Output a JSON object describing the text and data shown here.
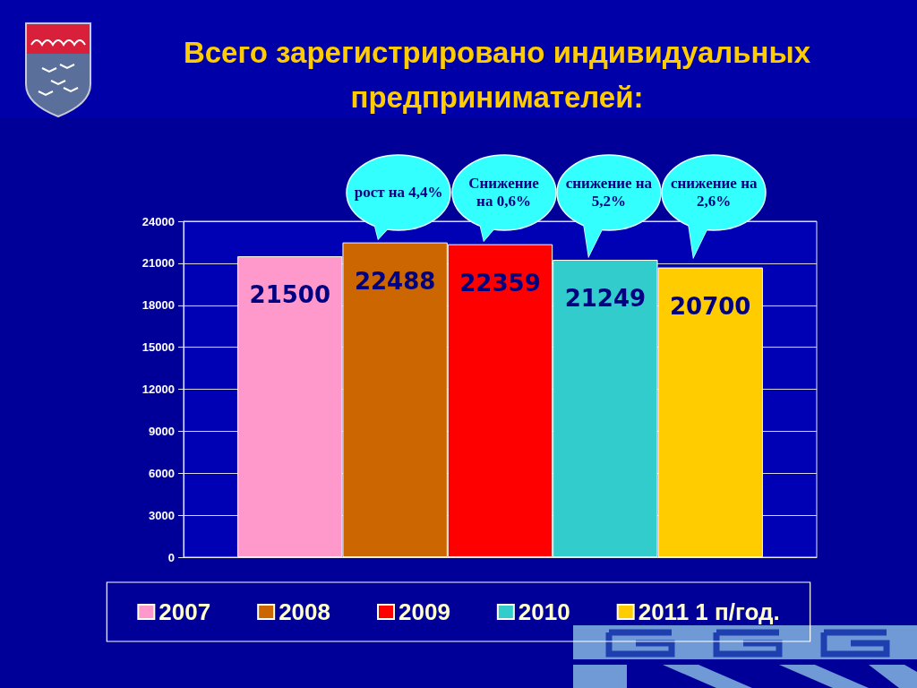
{
  "chart_data": {
    "type": "bar",
    "title": "Всего зарегистрировано индивидуальных предпринимателей:",
    "categories": [
      null
    ],
    "series": [
      {
        "name": "2007",
        "color": "#ff99cc",
        "values": [
          21500
        ]
      },
      {
        "name": "2008",
        "color": "#cc6600",
        "values": [
          22488
        ]
      },
      {
        "name": "2009",
        "color": "#ff0000",
        "values": [
          22359
        ]
      },
      {
        "name": "2010",
        "color": "#33cccc",
        "values": [
          21249
        ]
      },
      {
        "name": "2011 1 п/год.",
        "color": "#ffcc00",
        "values": [
          20700
        ]
      }
    ],
    "ylim": [
      0,
      24000
    ],
    "yticks": [
      0,
      3000,
      6000,
      9000,
      12000,
      15000,
      18000,
      21000,
      24000
    ],
    "grid": "y",
    "legend": "bottom",
    "data_labels": true,
    "tick_labels": "y",
    "annotations": [
      "рост на 4,4%",
      "Снижение на 0,6%",
      "снижение на 5,2%",
      "снижение на 2,6%"
    ]
  }
}
